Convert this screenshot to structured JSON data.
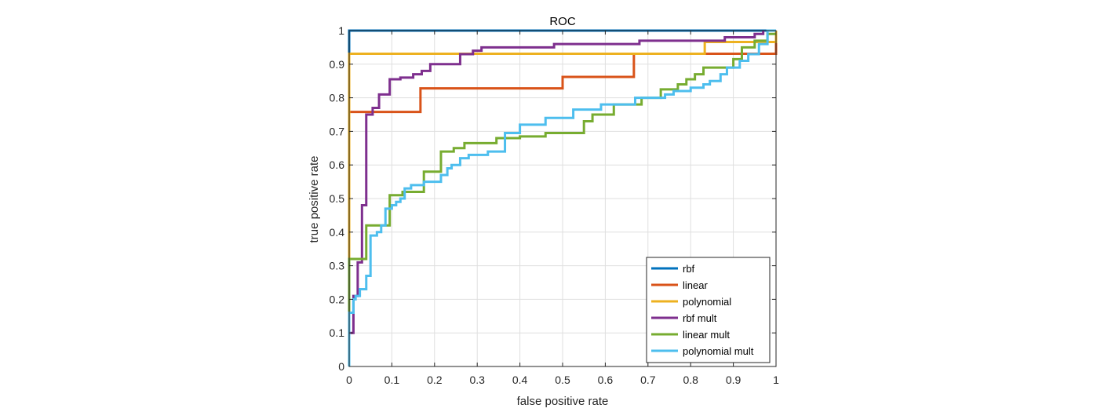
{
  "chart_data": {
    "type": "line",
    "title": "ROC",
    "xlabel": "false positive rate",
    "ylabel": "true positive rate",
    "xlim": [
      0,
      1
    ],
    "ylim": [
      0,
      1
    ],
    "grid": true,
    "legend_position": "bottom-right",
    "xticks": [
      0,
      0.1,
      0.2,
      0.3,
      0.4,
      0.5,
      0.6,
      0.7,
      0.8,
      0.9,
      1
    ],
    "yticks": [
      0,
      0.1,
      0.2,
      0.3,
      0.4,
      0.5,
      0.6,
      0.7,
      0.8,
      0.9,
      1
    ],
    "xtick_labels": [
      "0",
      "0.1",
      "0.2",
      "0.3",
      "0.4",
      "0.5",
      "0.6",
      "0.7",
      "0.8",
      "0.9",
      "1"
    ],
    "ytick_labels": [
      "0",
      "0.1",
      "0.2",
      "0.3",
      "0.4",
      "0.5",
      "0.6",
      "0.7",
      "0.8",
      "0.9",
      "1"
    ],
    "series": [
      {
        "name": "rbf",
        "color": "#0072BD",
        "x": [
          0,
          0,
          0.98,
          1
        ],
        "y": [
          0,
          1,
          1,
          1
        ]
      },
      {
        "name": "linear",
        "color": "#D95319",
        "x": [
          0,
          0,
          0.167,
          0.167,
          0.5,
          0.5,
          0.667,
          0.667,
          1,
          1
        ],
        "y": [
          0,
          0.758,
          0.758,
          0.828,
          0.828,
          0.862,
          0.862,
          0.931,
          0.931,
          1
        ]
      },
      {
        "name": "polynomial",
        "color": "#EDB120",
        "x": [
          0,
          0,
          0.833,
          0.833,
          1,
          1
        ],
        "y": [
          0,
          0.931,
          0.931,
          0.966,
          0.966,
          1
        ]
      },
      {
        "name": "rbf mult",
        "color": "#7E2F8E",
        "x": [
          0,
          0,
          0.01,
          0.01,
          0.02,
          0.02,
          0.03,
          0.03,
          0.04,
          0.04,
          0.055,
          0.055,
          0.07,
          0.07,
          0.095,
          0.095,
          0.12,
          0.12,
          0.15,
          0.15,
          0.17,
          0.17,
          0.19,
          0.19,
          0.26,
          0.26,
          0.29,
          0.29,
          0.31,
          0.31,
          0.48,
          0.48,
          0.68,
          0.68,
          0.88,
          0.88,
          0.95,
          0.95,
          0.97,
          0.97
        ],
        "y": [
          0,
          0.1,
          0.1,
          0.21,
          0.21,
          0.31,
          0.31,
          0.48,
          0.48,
          0.75,
          0.75,
          0.77,
          0.77,
          0.81,
          0.81,
          0.855,
          0.855,
          0.86,
          0.86,
          0.87,
          0.87,
          0.88,
          0.88,
          0.9,
          0.9,
          0.93,
          0.93,
          0.94,
          0.94,
          0.95,
          0.95,
          0.96,
          0.96,
          0.97,
          0.97,
          0.98,
          0.98,
          0.99,
          0.99,
          1
        ]
      },
      {
        "name": "linear mult",
        "color": "#77AC30",
        "x": [
          0,
          0,
          0.01,
          0.01,
          0.04,
          0.04,
          0.095,
          0.095,
          0.125,
          0.125,
          0.175,
          0.175,
          0.215,
          0.215,
          0.245,
          0.245,
          0.27,
          0.27,
          0.345,
          0.345,
          0.4,
          0.4,
          0.46,
          0.46,
          0.55,
          0.55,
          0.57,
          0.57,
          0.62,
          0.62,
          0.685,
          0.685,
          0.73,
          0.73,
          0.77,
          0.77,
          0.79,
          0.79,
          0.81,
          0.81,
          0.83,
          0.83,
          0.9,
          0.9,
          0.92,
          0.92,
          0.95,
          0.95,
          0.98,
          0.98,
          1
        ],
        "y": [
          0.14,
          0.32,
          0.32,
          0.32,
          0.32,
          0.42,
          0.42,
          0.51,
          0.51,
          0.52,
          0.52,
          0.58,
          0.58,
          0.64,
          0.64,
          0.65,
          0.65,
          0.665,
          0.665,
          0.68,
          0.68,
          0.685,
          0.685,
          0.695,
          0.695,
          0.73,
          0.73,
          0.75,
          0.75,
          0.78,
          0.78,
          0.8,
          0.8,
          0.825,
          0.825,
          0.84,
          0.84,
          0.855,
          0.855,
          0.87,
          0.87,
          0.89,
          0.89,
          0.915,
          0.915,
          0.95,
          0.95,
          0.97,
          0.97,
          0.99,
          0.99
        ]
      },
      {
        "name": "polynomial mult",
        "color": "#4DBEEE",
        "x": [
          0,
          0,
          0.01,
          0.01,
          0.015,
          0.015,
          0.025,
          0.025,
          0.04,
          0.04,
          0.05,
          0.05,
          0.065,
          0.065,
          0.075,
          0.075,
          0.085,
          0.085,
          0.1,
          0.1,
          0.11,
          0.11,
          0.12,
          0.12,
          0.13,
          0.13,
          0.145,
          0.145,
          0.175,
          0.175,
          0.215,
          0.215,
          0.23,
          0.23,
          0.24,
          0.24,
          0.26,
          0.26,
          0.28,
          0.28,
          0.325,
          0.325,
          0.365,
          0.365,
          0.4,
          0.4,
          0.46,
          0.46,
          0.525,
          0.525,
          0.59,
          0.59,
          0.67,
          0.67,
          0.74,
          0.74,
          0.76,
          0.76,
          0.8,
          0.8,
          0.83,
          0.83,
          0.845,
          0.845,
          0.87,
          0.87,
          0.885,
          0.885,
          0.915,
          0.915,
          0.935,
          0.935,
          0.96,
          0.96,
          0.98,
          0.98,
          1
        ],
        "y": [
          0,
          0.16,
          0.16,
          0.2,
          0.2,
          0.21,
          0.21,
          0.23,
          0.23,
          0.27,
          0.27,
          0.39,
          0.39,
          0.4,
          0.4,
          0.42,
          0.42,
          0.47,
          0.47,
          0.48,
          0.48,
          0.49,
          0.49,
          0.5,
          0.5,
          0.53,
          0.53,
          0.54,
          0.54,
          0.55,
          0.55,
          0.57,
          0.57,
          0.59,
          0.59,
          0.6,
          0.6,
          0.62,
          0.62,
          0.63,
          0.63,
          0.64,
          0.64,
          0.695,
          0.695,
          0.72,
          0.72,
          0.74,
          0.74,
          0.765,
          0.765,
          0.78,
          0.78,
          0.8,
          0.8,
          0.81,
          0.81,
          0.82,
          0.82,
          0.83,
          0.83,
          0.84,
          0.84,
          0.85,
          0.85,
          0.87,
          0.87,
          0.89,
          0.89,
          0.91,
          0.91,
          0.93,
          0.93,
          0.96,
          0.96,
          1,
          1
        ]
      }
    ]
  }
}
